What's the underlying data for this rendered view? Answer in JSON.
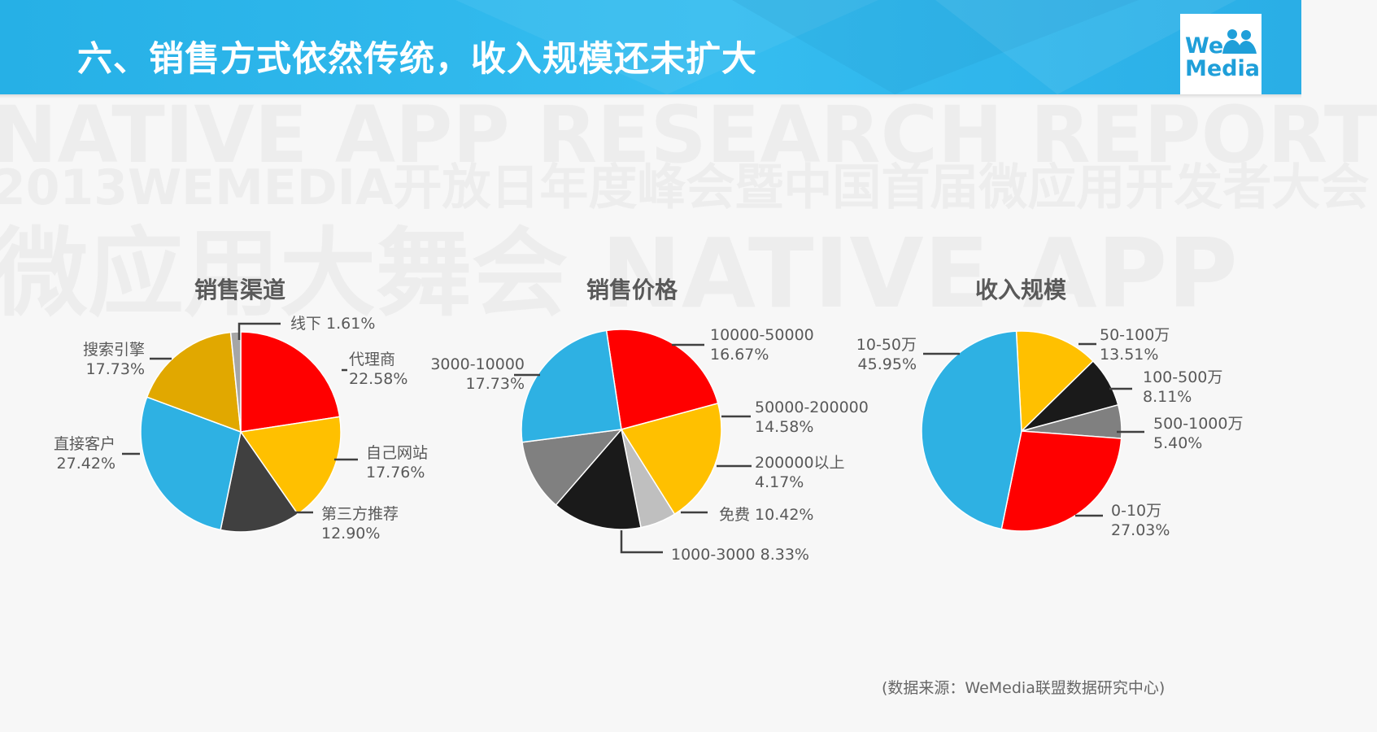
{
  "header": {
    "title": "六、销售方式依然传统，收入规模还未扩大",
    "logo_line1": "We",
    "logo_line2": "Media"
  },
  "watermark": {
    "line1": "NATIVE APP RESEARCH REPORT",
    "line2": "2013WEMEDIA开放日年度峰会暨中国首届微应用开发者大会",
    "line3": "微应用大舞会 NATIVE APP"
  },
  "source": "(数据来源：WeMedia联盟数据研究中心)",
  "colors": {
    "banner": "#29b3ea",
    "red": "#ff0000",
    "yellow": "#ffc000",
    "blue": "#2eb1e3",
    "dark": "#404040",
    "black": "#1a1a1a",
    "gray": "#7f7f7f",
    "lightgray": "#bfbfbf",
    "gold": "#e1a800"
  },
  "chart_data": [
    {
      "type": "pie",
      "title": "销售渠道",
      "slices": [
        {
          "label": "代理商",
          "value": 22.58,
          "text": "22.58%",
          "color": "#ff0000"
        },
        {
          "label": "自己网站",
          "value": 17.76,
          "text": "17.76%",
          "color": "#ffc000"
        },
        {
          "label": "第三方推荐",
          "value": 12.9,
          "text": "12.90%",
          "color": "#404040"
        },
        {
          "label": "直接客户",
          "value": 27.42,
          "text": "27.42%",
          "color": "#2eb1e3"
        },
        {
          "label": "搜索引擎",
          "value": 17.73,
          "text": "17.73%",
          "color": "#e1a800"
        },
        {
          "label": "线下",
          "value": 1.61,
          "text": "1.61%",
          "color": "#a6a6a6"
        }
      ]
    },
    {
      "type": "pie",
      "title": "销售价格",
      "slices": [
        {
          "label": "10000-50000",
          "value": 16.67,
          "text": "16.67%",
          "color": "#ff0000"
        },
        {
          "label": "50000-200000",
          "value": 14.58,
          "text": "14.58%",
          "color": "#ffc000"
        },
        {
          "label": "200000以上",
          "value": 4.17,
          "text": "4.17%",
          "color": "#bfbfbf"
        },
        {
          "label": "免费",
          "value": 10.42,
          "text": "10.42%",
          "color": "#1a1a1a"
        },
        {
          "label": "1000-3000",
          "value": 8.33,
          "text": "8.33%",
          "color": "#808080"
        },
        {
          "label": "3000-10000",
          "value": 17.73,
          "text": "17.73%",
          "color": "#2eb1e3"
        }
      ]
    },
    {
      "type": "pie",
      "title": "收入规模",
      "slices": [
        {
          "label": "50-100万",
          "value": 13.51,
          "text": "13.51%",
          "color": "#ffc000"
        },
        {
          "label": "100-500万",
          "value": 8.11,
          "text": "8.11%",
          "color": "#1a1a1a"
        },
        {
          "label": "500-1000万",
          "value": 5.4,
          "text": "5.40%",
          "color": "#808080"
        },
        {
          "label": "0-10万",
          "value": 27.03,
          "text": "27.03%",
          "color": "#ff0000"
        },
        {
          "label": "10-50万",
          "value": 45.95,
          "text": "45.95%",
          "color": "#2eb1e3"
        }
      ]
    }
  ]
}
